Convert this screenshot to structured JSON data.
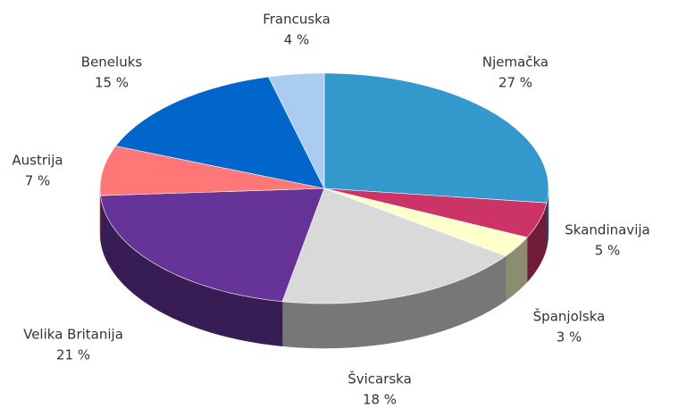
{
  "chart_data": {
    "type": "pie3d",
    "categories": [
      "Njemačka",
      "Skandinavija",
      "Španjolska",
      "Švicarska",
      "Velika Britanija",
      "Austrija",
      "Beneluks",
      "Francuska"
    ],
    "values": [
      27,
      5,
      3,
      18,
      21,
      7,
      15,
      4
    ],
    "value_labels": [
      "27 %",
      "5 %",
      "3 %",
      "18 %",
      "21 %",
      "7 %",
      "15 %",
      "4 %"
    ],
    "colors": [
      "#3399cc",
      "#cc3366",
      "#ffffcc",
      "#d9d9d9",
      "#663399",
      "#ff7777",
      "#0066cc",
      "#aaccee"
    ]
  }
}
